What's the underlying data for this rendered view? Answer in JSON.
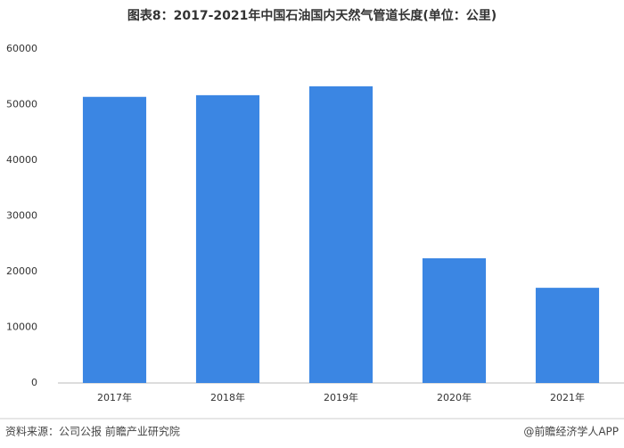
{
  "chart_data": {
    "type": "bar",
    "title": "图表8：2017-2021年中国石油国内天然气管道长度(单位：公里)",
    "categories": [
      "2017年",
      "2018年",
      "2019年",
      "2020年",
      "2021年"
    ],
    "values": [
      51400,
      51700,
      53300,
      22400,
      17100
    ],
    "color": "#3b86e3",
    "ylim": [
      0,
      60000
    ],
    "yticks": [
      0,
      10000,
      20000,
      30000,
      40000,
      50000,
      60000
    ],
    "grid": false,
    "source": "资料来源：公司公报 前瞻产业研究院",
    "brand": "@前瞻经济学人APP"
  }
}
